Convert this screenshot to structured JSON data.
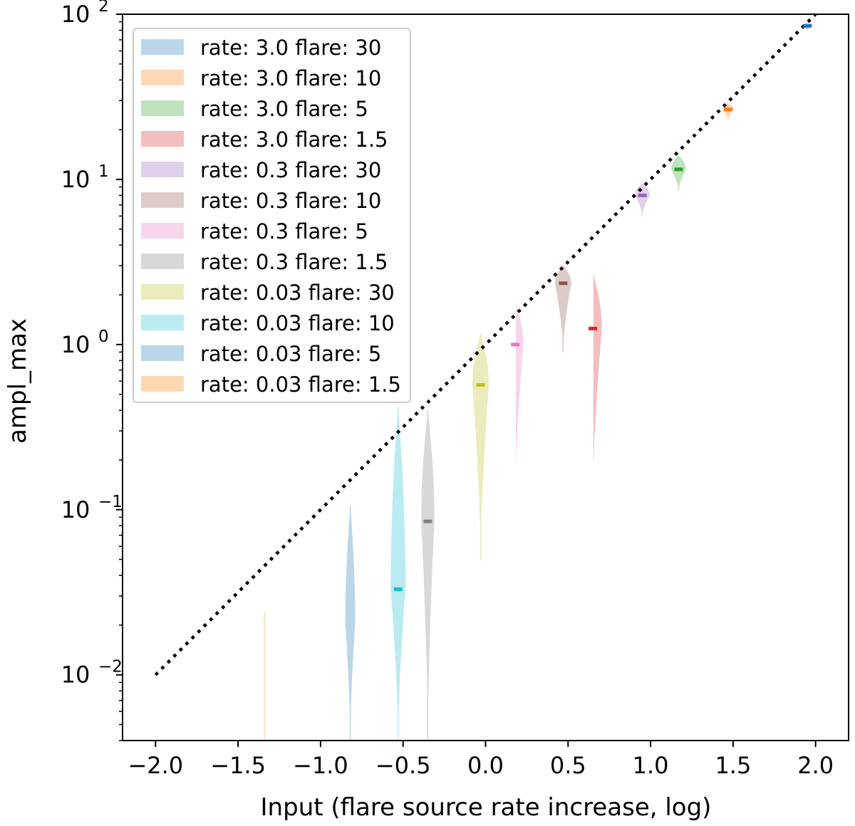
{
  "chart_data": {
    "type": "violin",
    "xlabel": "Input (flare source rate increase, log)",
    "ylabel": "ampl_max",
    "xlim": [
      -2.2,
      2.2
    ],
    "ylim": [
      0.004,
      100
    ],
    "yscale": "log",
    "xticks": [
      -2.0,
      -1.5,
      -1.0,
      -0.5,
      0.0,
      0.5,
      1.0,
      1.5,
      2.0
    ],
    "xtick_labels": [
      "−2.0",
      "−1.5",
      "−1.0",
      "−0.5",
      "0.0",
      "0.5",
      "1.0",
      "1.5",
      "2.0"
    ],
    "yticks": [
      {
        "value": 0.01,
        "base": "10",
        "exp": "−2"
      },
      {
        "value": 0.1,
        "base": "10",
        "exp": "−1"
      },
      {
        "value": 1,
        "base": "10",
        "exp": "0"
      },
      {
        "value": 10,
        "base": "10",
        "exp": "1"
      },
      {
        "value": 100,
        "base": "10",
        "exp": "2"
      }
    ],
    "reference_line": {
      "style": "dotted",
      "color": "#000000",
      "x": [
        -2.0,
        2.0
      ],
      "y": [
        0.01,
        100
      ]
    },
    "legend_position": "upper-left",
    "series": [
      {
        "name": "rate: 3.0 flare: 30",
        "color": "#1f77b4",
        "x": 1.95,
        "median": 85,
        "min": 80,
        "max": 89,
        "width": 0.035
      },
      {
        "name": "rate: 3.0 flare: 10",
        "color": "#ff7f0e",
        "x": 1.47,
        "median": 26.5,
        "min": 23,
        "max": 29,
        "width": 0.035
      },
      {
        "name": "rate: 3.0 flare: 5",
        "color": "#2ca02c",
        "x": 1.17,
        "median": 11.5,
        "min": 8.5,
        "max": 14,
        "width": 0.045
      },
      {
        "name": "rate: 3.0 flare: 1.5",
        "color": "#d62728",
        "x": 0.65,
        "median": 1.25,
        "min": 0.12,
        "max": 2.7,
        "width": 0.055
      },
      {
        "name": "rate: 0.3 flare: 30",
        "color": "#9467bd",
        "x": 0.95,
        "median": 8.0,
        "min": 6.0,
        "max": 9.5,
        "width": 0.045
      },
      {
        "name": "rate: 0.3 flare: 10",
        "color": "#8c564b",
        "x": 0.47,
        "median": 2.35,
        "min": 0.9,
        "max": 3.0,
        "width": 0.05
      },
      {
        "name": "rate: 0.3 flare: 5",
        "color": "#e377c2",
        "x": 0.18,
        "median": 1.0,
        "min": 0.12,
        "max": 1.8,
        "width": 0.05
      },
      {
        "name": "rate: 0.3 flare: 1.5",
        "color": "#7f7f7f",
        "x": -0.35,
        "median": 0.085,
        "min": 0.004,
        "max": 0.4,
        "width": 0.04
      },
      {
        "name": "rate: 0.03 flare: 30",
        "color": "#bcbd22",
        "x": -0.03,
        "median": 0.57,
        "min": 0.05,
        "max": 1.15,
        "width": 0.05
      },
      {
        "name": "rate: 0.03 flare: 10",
        "color": "#17becf",
        "x": -0.53,
        "median": 0.033,
        "min": 0.004,
        "max": 0.42,
        "width": 0.045
      },
      {
        "name": "rate: 0.03 flare: 5",
        "color": "#1f77b4",
        "x": -0.82,
        "median": null,
        "min": 0.004,
        "max": 0.105,
        "width": 0.03
      },
      {
        "name": "rate: 0.03 flare: 1.5",
        "color": "#ff7f0e",
        "x": -1.34,
        "median": null,
        "min": 0.004,
        "max": 0.024,
        "width": 0.003
      }
    ]
  }
}
